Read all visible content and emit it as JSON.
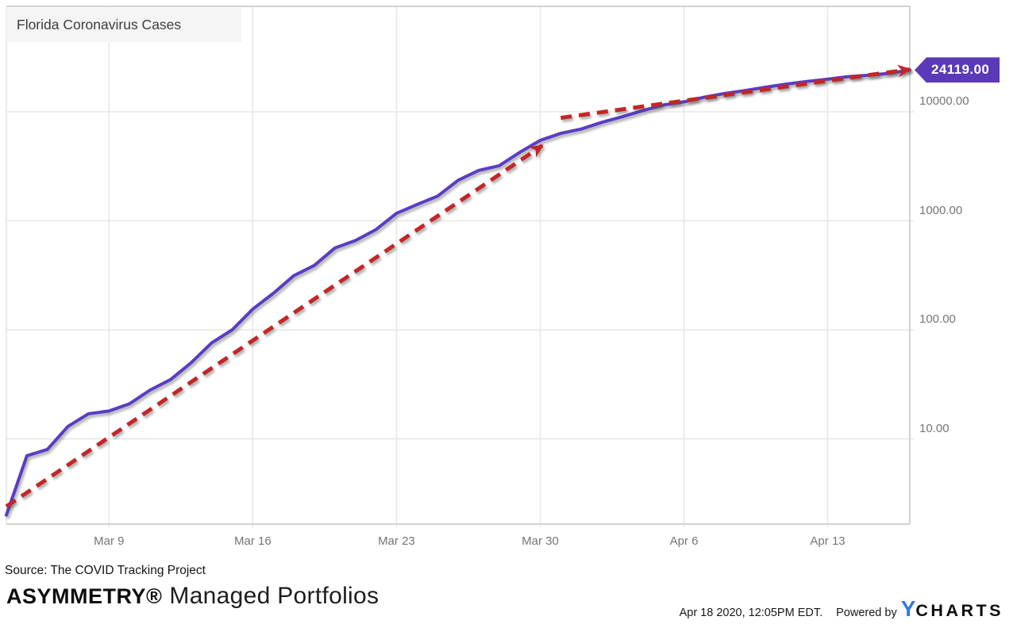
{
  "chart": {
    "title": "Florida Coronavirus Cases",
    "colors": {
      "line": "#5b3cc4",
      "badge": "#5a3ab8",
      "arrow": "#c32627",
      "grid": "#e6e6e6",
      "axis": "#d2d2d2",
      "tick_label": "#757575",
      "title_bg": "#f5f5f5",
      "ycharts_blue": "#3479e8"
    }
  },
  "chart_data": {
    "type": "line",
    "title": "Florida Coronavirus Cases",
    "y_scale": "log",
    "y_axis_side": "right",
    "grid": true,
    "legend": "none",
    "x": [
      "Mar 4",
      "Mar 5",
      "Mar 6",
      "Mar 7",
      "Mar 8",
      "Mar 9",
      "Mar 10",
      "Mar 11",
      "Mar 12",
      "Mar 13",
      "Mar 14",
      "Mar 15",
      "Mar 16",
      "Mar 17",
      "Mar 18",
      "Mar 19",
      "Mar 20",
      "Mar 21",
      "Mar 22",
      "Mar 23",
      "Mar 24",
      "Mar 25",
      "Mar 26",
      "Mar 27",
      "Mar 28",
      "Mar 29",
      "Mar 30",
      "Mar 31",
      "Apr 1",
      "Apr 2",
      "Apr 3",
      "Apr 4",
      "Apr 5",
      "Apr 6",
      "Apr 7",
      "Apr 8",
      "Apr 9",
      "Apr 10",
      "Apr 11",
      "Apr 12",
      "Apr 13",
      "Apr 14",
      "Apr 15",
      "Apr 16",
      "Apr 17"
    ],
    "series": [
      {
        "name": "Florida Coronavirus Cases",
        "values": [
          2,
          7,
          8,
          13,
          17,
          18,
          21,
          28,
          35,
          50,
          76,
          100,
          155,
          216,
          314,
          390,
          563,
          659,
          830,
          1171,
          1412,
          1682,
          2355,
          2900,
          3198,
          4246,
          5473,
          6338,
          6955,
          8010,
          9008,
          10268,
          11545,
          12350,
          13629,
          14747,
          15698,
          16826,
          17968,
          18986,
          19895,
          21019,
          21628,
          22511,
          24119
        ]
      }
    ],
    "y_ticks": [
      {
        "label": "10000.00",
        "value": 10000
      },
      {
        "label": "1000.00",
        "value": 1000
      },
      {
        "label": "100.00",
        "value": 100
      },
      {
        "label": "10.00",
        "value": 10
      }
    ],
    "x_ticks": [
      {
        "label": "Mar 9",
        "day_index": 5
      },
      {
        "label": "Mar 16",
        "day_index": 12
      },
      {
        "label": "Mar 23",
        "day_index": 19
      },
      {
        "label": "Mar 30",
        "day_index": 26
      },
      {
        "label": "Apr 6",
        "day_index": 33
      },
      {
        "label": "Apr 13",
        "day_index": 40
      }
    ],
    "annotations": {
      "trend_arrows": [
        {
          "from": {
            "day_index": 0,
            "value": 2.4
          },
          "to": {
            "day_index": 26.1,
            "value": 4900
          }
        },
        {
          "from": {
            "day_index": 27.0,
            "value": 8800
          },
          "to": {
            "day_index": 44.0,
            "value": 24500
          }
        }
      ],
      "last_value_flag": {
        "value": 24119,
        "label": "24119.00"
      }
    }
  },
  "footer": {
    "source": "Source: The COVID Tracking Project",
    "brand_bold": "ASYMMETRY®",
    "brand_regular": "Managed Portfolios",
    "timestamp": "Apr 18 2020, 12:05PM EDT.",
    "powered_by": "Powered by",
    "ycharts_y": "Y",
    "ycharts_rest": "CHARTS"
  }
}
